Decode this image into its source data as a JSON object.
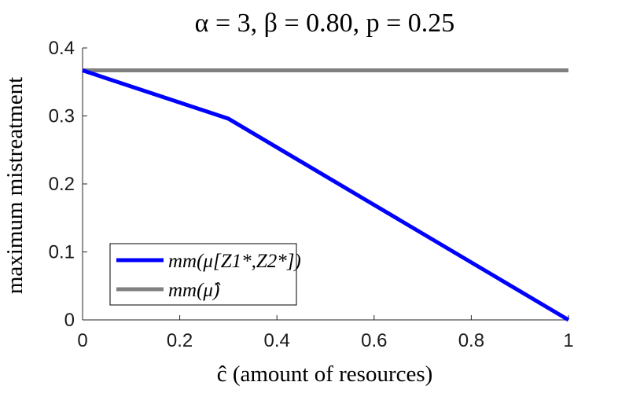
{
  "chart_data": {
    "type": "line",
    "title": "α = 3, β = 0.80, p = 0.25",
    "xlabel": "ĉ (amount of resources)",
    "ylabel": "maximum mistreatment",
    "xlim": [
      0,
      1
    ],
    "ylim": [
      0,
      0.4
    ],
    "x_ticks": [
      "0",
      "0.2",
      "0.4",
      "0.6",
      "0.8",
      "1"
    ],
    "y_ticks": [
      "0",
      "0.1",
      "0.2",
      "0.3",
      "0.4"
    ],
    "x_tick_values": [
      0,
      0.2,
      0.4,
      0.6,
      0.8,
      1
    ],
    "y_tick_values": [
      0,
      0.1,
      0.2,
      0.3,
      0.4
    ],
    "grid": false,
    "legend_position": "bottom-left",
    "series": [
      {
        "name": "mm(μ[Z1*,Z2*])",
        "color": "#0000ff",
        "x": [
          0,
          0.3,
          1
        ],
        "y": [
          0.367,
          0.296,
          0.0
        ]
      },
      {
        "name": "mm(μ̂)",
        "color": "#808080",
        "x": [
          0,
          1
        ],
        "y": [
          0.367,
          0.367
        ]
      }
    ]
  }
}
